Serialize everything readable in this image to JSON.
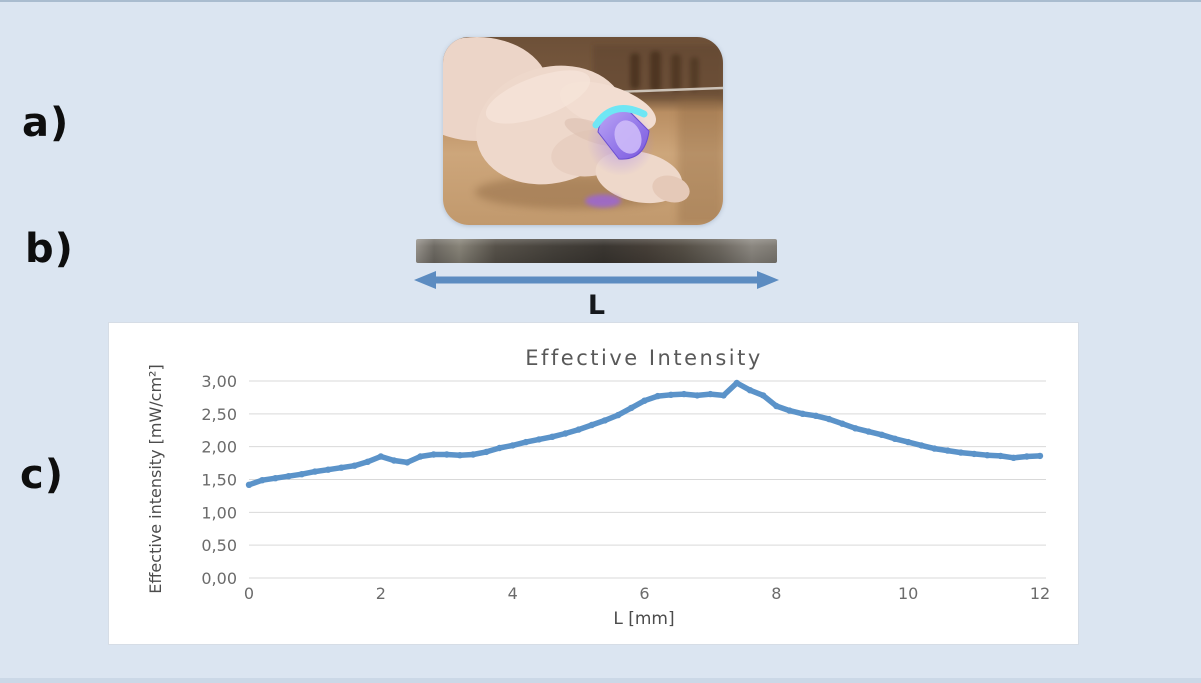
{
  "figure": {
    "panel_a_label": "a)",
    "panel_b_label": "b)",
    "panel_c_label": "c)",
    "arrow_label": "L"
  },
  "colors": {
    "background": "#dbe5f1",
    "chart_line": "#5b93c9",
    "arrow_blue": "#5c8cc1",
    "gridline": "#d9d9d9",
    "chart_text": "#595959"
  },
  "chart_data": {
    "type": "line",
    "title": "Effective Intensity",
    "xlabel": "L [mm]",
    "ylabel": "Effective intensity [mW/cm²]",
    "xlim": [
      0,
      12.1
    ],
    "ylim": [
      0,
      3
    ],
    "grid": true,
    "legend_position": "none",
    "x_ticks": [
      0,
      2,
      4,
      6,
      8,
      10,
      12
    ],
    "x_tick_labels": [
      "0",
      "2",
      "4",
      "6",
      "8",
      "10",
      "12"
    ],
    "y_ticks": [
      0,
      0.5,
      1,
      1.5,
      2,
      2.5,
      3
    ],
    "y_tick_labels": [
      "0,00",
      "0,50",
      "1,00",
      "1,50",
      "2,00",
      "2,50",
      "3,00"
    ],
    "series": [
      {
        "name": "Effective intensity",
        "x": [
          0,
          0.2,
          0.4,
          0.6,
          0.8,
          1,
          1.2,
          1.4,
          1.6,
          1.8,
          2,
          2.2,
          2.4,
          2.6,
          2.8,
          3,
          3.2,
          3.4,
          3.6,
          3.8,
          4,
          4.2,
          4.4,
          4.6,
          4.8,
          5,
          5.2,
          5.4,
          5.6,
          5.8,
          6,
          6.2,
          6.4,
          6.6,
          6.8,
          7,
          7.2,
          7.4,
          7.6,
          7.8,
          8,
          8.2,
          8.4,
          8.6,
          8.8,
          9,
          9.2,
          9.4,
          9.6,
          9.8,
          10,
          10.2,
          10.4,
          10.6,
          10.8,
          11,
          11.2,
          11.4,
          11.6,
          11.8,
          12
        ],
        "y": [
          1.42,
          1.49,
          1.52,
          1.55,
          1.58,
          1.62,
          1.65,
          1.68,
          1.71,
          1.77,
          1.85,
          1.79,
          1.76,
          1.85,
          1.88,
          1.88,
          1.87,
          1.88,
          1.92,
          1.98,
          2.02,
          2.07,
          2.11,
          2.15,
          2.2,
          2.26,
          2.33,
          2.4,
          2.48,
          2.59,
          2.7,
          2.77,
          2.79,
          2.8,
          2.78,
          2.8,
          2.78,
          2.97,
          2.86,
          2.78,
          2.62,
          2.55,
          2.5,
          2.47,
          2.42,
          2.35,
          2.28,
          2.23,
          2.18,
          2.12,
          2.07,
          2.02,
          1.97,
          1.94,
          1.91,
          1.89,
          1.87,
          1.86,
          1.83,
          1.85,
          1.86
        ]
      }
    ]
  }
}
